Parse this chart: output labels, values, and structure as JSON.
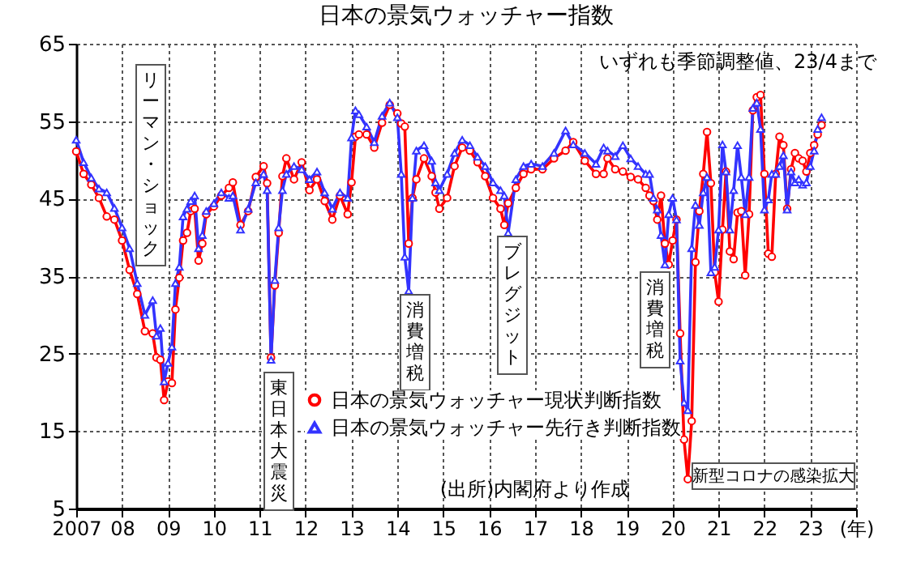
{
  "chart_data": {
    "type": "line",
    "title": "日本の景気ウォッチャー指数",
    "x": [
      "2007-01",
      "2007-03",
      "2007-05",
      "2007-07",
      "2007-09",
      "2007-11",
      "2008-01",
      "2008-03",
      "2008-05",
      "2008-07",
      "2008-09",
      "2008-10",
      "2008-11",
      "2008-12",
      "2009-01",
      "2009-02",
      "2009-03",
      "2009-04",
      "2009-05",
      "2009-06",
      "2009-07",
      "2009-08",
      "2009-09",
      "2009-10",
      "2009-11",
      "2010-01",
      "2010-03",
      "2010-05",
      "2010-06",
      "2010-08",
      "2010-10",
      "2010-12",
      "2011-02",
      "2011-03",
      "2011-04",
      "2011-05",
      "2011-06",
      "2011-07",
      "2011-08",
      "2011-10",
      "2011-12",
      "2012-02",
      "2012-04",
      "2012-06",
      "2012-08",
      "2012-10",
      "2012-12",
      "2013-01",
      "2013-02",
      "2013-03",
      "2013-05",
      "2013-07",
      "2013-09",
      "2013-11",
      "2014-01",
      "2014-02",
      "2014-03",
      "2014-04",
      "2014-05",
      "2014-06",
      "2014-08",
      "2014-10",
      "2014-11",
      "2014-12",
      "2015-02",
      "2015-04",
      "2015-06",
      "2015-08",
      "2015-10",
      "2015-12",
      "2016-02",
      "2016-04",
      "2016-05",
      "2016-06",
      "2016-08",
      "2016-10",
      "2016-12",
      "2017-03",
      "2017-06",
      "2017-09",
      "2017-11",
      "2018-02",
      "2018-05",
      "2018-07",
      "2018-08",
      "2018-10",
      "2018-12",
      "2019-02",
      "2019-04",
      "2019-06",
      "2019-07",
      "2019-08",
      "2019-09",
      "2019-10",
      "2019-11",
      "2019-12",
      "2020-01",
      "2020-02",
      "2020-03",
      "2020-04",
      "2020-05",
      "2020-06",
      "2020-07",
      "2020-08",
      "2020-09",
      "2020-10",
      "2020-11",
      "2020-12",
      "2021-01",
      "2021-02",
      "2021-03",
      "2021-04",
      "2021-05",
      "2021-06",
      "2021-07",
      "2021-08",
      "2021-09",
      "2021-10",
      "2021-11",
      "2021-12",
      "2022-01",
      "2022-02",
      "2022-03",
      "2022-04",
      "2022-05",
      "2022-06",
      "2022-07",
      "2022-08",
      "2022-09",
      "2022-10",
      "2022-11",
      "2022-12",
      "2023-01",
      "2023-02",
      "2023-03",
      "2023-04"
    ],
    "series": [
      {
        "name": "日本の景気ウォッチャー現状判断指数",
        "color": "#ff0000",
        "marker": "circle",
        "values": [
          51.1,
          48.2,
          46.8,
          45.1,
          42.7,
          42.3,
          39.6,
          35.8,
          32.7,
          27.9,
          27.6,
          24.5,
          24.2,
          19.0,
          21.4,
          21.2,
          30.7,
          34.8,
          39.6,
          40.6,
          43.4,
          43.7,
          37.0,
          39.2,
          43.0,
          44.0,
          45.4,
          46.4,
          47.1,
          41.6,
          43.4,
          47.8,
          49.2,
          47.0,
          24.5,
          33.8,
          40.6,
          47.9,
          50.2,
          47.5,
          49.7,
          46.1,
          47.5,
          44.7,
          42.3,
          45.4,
          43.0,
          47.1,
          53.0,
          53.3,
          53.3,
          51.6,
          54.8,
          57.1,
          56.0,
          54.7,
          54.3,
          39.2,
          45.1,
          47.5,
          50.2,
          47.9,
          45.8,
          43.7,
          45.1,
          49.2,
          51.6,
          51.2,
          49.7,
          47.9,
          45.1,
          43.7,
          41.6,
          44.4,
          46.4,
          48.2,
          48.8,
          48.8,
          50.2,
          51.2,
          52.3,
          49.9,
          48.2,
          48.2,
          50.2,
          48.8,
          48.5,
          47.8,
          47.5,
          46.4,
          45.4,
          44.7,
          42.3,
          45.4,
          39.2,
          36.5,
          39.6,
          42.3,
          27.6,
          13.9,
          8.8,
          16.3,
          36.8,
          43.4,
          48.2,
          53.6,
          47.0,
          35.5,
          31.7,
          41.0,
          48.5,
          38.2,
          37.2,
          43.2,
          43.4,
          35.1,
          43.0,
          56.4,
          58.1,
          58.4,
          48.2,
          37.9,
          37.5,
          48.2,
          53.0,
          51.9,
          43.7,
          48.8,
          50.9,
          50.2,
          49.9,
          48.5,
          50.9,
          51.9,
          53.3,
          54.5
        ]
      },
      {
        "name": "日本の景気ウォッチャー先行き判断指数",
        "color": "#3333ff",
        "marker": "triangle",
        "values": [
          52.6,
          49.7,
          47.7,
          46.3,
          45.8,
          43.8,
          41.3,
          38.6,
          34.1,
          30.0,
          31.9,
          27.3,
          28.3,
          21.4,
          23.8,
          25.9,
          34.1,
          36.2,
          42.7,
          43.7,
          44.7,
          45.4,
          38.6,
          40.3,
          43.4,
          44.4,
          45.8,
          45.1,
          45.4,
          41.0,
          43.7,
          47.1,
          48.2,
          46.1,
          24.2,
          34.5,
          41.3,
          46.1,
          48.2,
          49.2,
          48.8,
          47.5,
          48.5,
          45.8,
          43.7,
          45.8,
          45.1,
          52.9,
          56.4,
          55.9,
          54.3,
          52.3,
          55.7,
          57.4,
          55.5,
          48.2,
          37.5,
          33.1,
          45.1,
          51.2,
          51.9,
          49.9,
          47.1,
          46.1,
          48.2,
          50.9,
          52.6,
          51.9,
          50.4,
          49.2,
          47.1,
          46.1,
          45.4,
          40.6,
          47.5,
          49.2,
          49.5,
          49.2,
          50.9,
          53.8,
          52.0,
          50.9,
          49.5,
          51.6,
          51.2,
          50.5,
          51.9,
          50.2,
          49.2,
          48.2,
          48.2,
          45.1,
          43.6,
          40.3,
          36.5,
          43.0,
          45.1,
          42.3,
          24.1,
          18.7,
          17.7,
          38.6,
          44.2,
          41.6,
          45.8,
          47.8,
          35.5,
          36.2,
          41.0,
          52.0,
          48.5,
          41.0,
          46.1,
          51.9,
          47.8,
          43.0,
          47.8,
          56.7,
          57.4,
          54.0,
          43.6,
          44.9,
          48.2,
          48.2,
          49.2,
          50.6,
          43.6,
          48.5,
          47.1,
          47.5,
          46.8,
          47.1,
          49.2,
          51.2,
          54.0,
          55.5
        ]
      }
    ],
    "ylim": [
      5,
      65
    ],
    "yticks": [
      5,
      15,
      25,
      35,
      45,
      55,
      65
    ],
    "xlim": [
      "2007-01",
      "2024-01"
    ],
    "xticks": [
      {
        "value": "2007-01",
        "label": "2007"
      },
      {
        "value": "2008-01",
        "label": "08"
      },
      {
        "value": "2009-01",
        "label": "09"
      },
      {
        "value": "2010-01",
        "label": "10"
      },
      {
        "value": "2011-01",
        "label": "11"
      },
      {
        "value": "2012-01",
        "label": "12"
      },
      {
        "value": "2013-01",
        "label": "13"
      },
      {
        "value": "2014-01",
        "label": "14"
      },
      {
        "value": "2015-01",
        "label": "15"
      },
      {
        "value": "2016-01",
        "label": "16"
      },
      {
        "value": "2017-01",
        "label": "17"
      },
      {
        "value": "2018-01",
        "label": "18"
      },
      {
        "value": "2019-01",
        "label": "19"
      },
      {
        "value": "2020-01",
        "label": "20"
      },
      {
        "value": "2021-01",
        "label": "21"
      },
      {
        "value": "2022-01",
        "label": "22"
      },
      {
        "value": "2023-01",
        "label": "23"
      },
      {
        "value": "2024-01",
        "label": "(年)"
      }
    ],
    "grid": true,
    "legend": "bottom",
    "annotations": [
      "いずれも季節調整値、23/4まで",
      "(出所)内閣府より作成",
      "リーマン・ショック",
      "東日本大震災",
      "消費増税",
      "ブレグジット",
      "消費増税",
      "新型コロナの感染拡大"
    ]
  }
}
